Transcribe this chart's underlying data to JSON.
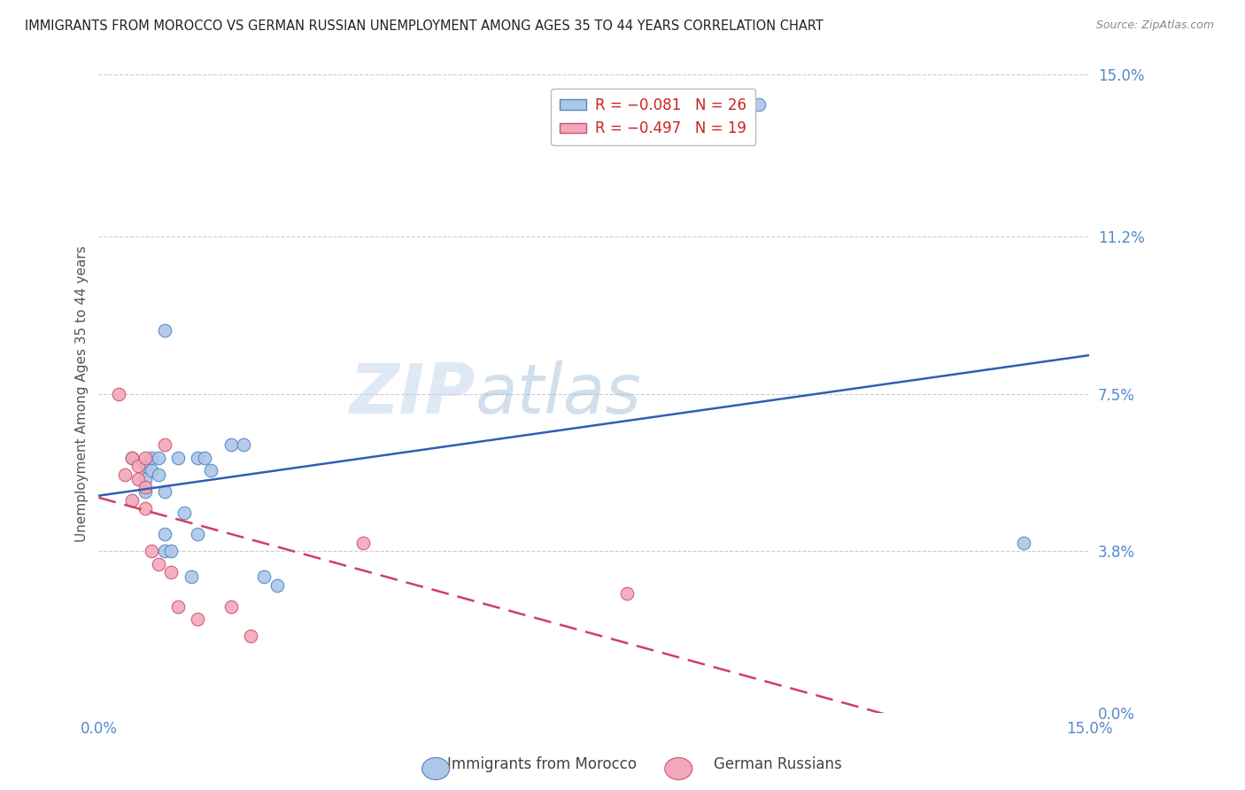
{
  "title": "IMMIGRANTS FROM MOROCCO VS GERMAN RUSSIAN UNEMPLOYMENT AMONG AGES 35 TO 44 YEARS CORRELATION CHART",
  "source": "Source: ZipAtlas.com",
  "ylabel": "Unemployment Among Ages 35 to 44 years",
  "xlim": [
    0.0,
    0.15
  ],
  "ylim": [
    0.0,
    0.15
  ],
  "ytick_labels": [
    "15.0%",
    "11.2%",
    "7.5%",
    "3.8%",
    "0.0%"
  ],
  "ytick_values": [
    0.15,
    0.112,
    0.075,
    0.038,
    0.0
  ],
  "watermark_zip": "ZIP",
  "watermark_atlas": "atlas",
  "morocco_scatter_x": [
    0.005,
    0.01,
    0.007,
    0.007,
    0.007,
    0.008,
    0.008,
    0.009,
    0.009,
    0.01,
    0.01,
    0.01,
    0.011,
    0.012,
    0.013,
    0.014,
    0.015,
    0.015,
    0.016,
    0.017,
    0.02,
    0.022,
    0.025,
    0.027,
    0.1,
    0.14
  ],
  "morocco_scatter_y": [
    0.06,
    0.09,
    0.058,
    0.055,
    0.052,
    0.06,
    0.057,
    0.056,
    0.06,
    0.052,
    0.042,
    0.038,
    0.038,
    0.06,
    0.047,
    0.032,
    0.06,
    0.042,
    0.06,
    0.057,
    0.063,
    0.063,
    0.032,
    0.03,
    0.143,
    0.04
  ],
  "german_scatter_x": [
    0.003,
    0.004,
    0.005,
    0.005,
    0.006,
    0.006,
    0.007,
    0.007,
    0.007,
    0.008,
    0.009,
    0.01,
    0.011,
    0.012,
    0.015,
    0.02,
    0.023,
    0.04,
    0.08
  ],
  "german_scatter_y": [
    0.075,
    0.056,
    0.06,
    0.05,
    0.055,
    0.058,
    0.053,
    0.048,
    0.06,
    0.038,
    0.035,
    0.063,
    0.033,
    0.025,
    0.022,
    0.025,
    0.018,
    0.04,
    0.028
  ],
  "morocco_color": "#aec6e8",
  "morocco_edge_color": "#4a86c8",
  "german_color": "#f2a8ba",
  "german_edge_color": "#d05070",
  "morocco_trendline_color": "#3060b0",
  "german_trendline_color": "#d04060",
  "background_color": "#ffffff",
  "grid_color": "#cccccc",
  "axis_label_color": "#5588cc",
  "title_color": "#222222",
  "scatter_size": 110,
  "legend_r1": "R = −0.081",
  "legend_n1": "N = 26",
  "legend_r2": "R = −0.497",
  "legend_n2": "N = 19"
}
